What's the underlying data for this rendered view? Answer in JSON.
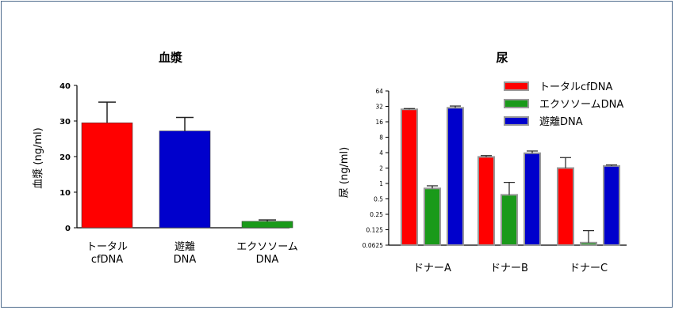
{
  "chart_data": [
    {
      "type": "bar",
      "title": "血漿",
      "ylabel": "血漿 (ng/ml)",
      "ylim": [
        0,
        40
      ],
      "yticks": [
        "0",
        "10",
        "20",
        "30",
        "40"
      ],
      "categories": [
        {
          "line1": "トータル",
          "line2": "cfDNA"
        },
        {
          "line1": "遊離",
          "line2": "DNA"
        },
        {
          "line1": "エクソソーム",
          "line2": "DNA"
        }
      ],
      "values": [
        29.5,
        27.2,
        1.8
      ],
      "errors": [
        5.8,
        3.8,
        0.4
      ],
      "colors": [
        "#ff0000",
        "#0000cc",
        "#1a9a1a"
      ]
    },
    {
      "type": "bar",
      "title": "尿",
      "ylabel": "尿 (ng/ml)",
      "yscale": "log2",
      "ylim": [
        0.0625,
        64
      ],
      "yticks": [
        "64",
        "32",
        "16",
        "8",
        "4",
        "2",
        "1",
        "0.5",
        "0.25",
        "0.125",
        "0.0625"
      ],
      "categories": [
        "ドナーA",
        "ドナーB",
        "ドナーC"
      ],
      "series": [
        {
          "name": "トータルcfDNA",
          "color": "#ff0000",
          "values": [
            28,
            3.3,
            2.0
          ],
          "errors": [
            1.0,
            0.2,
            1.2
          ]
        },
        {
          "name": "エクソソームDNA",
          "color": "#1a9a1a",
          "values": [
            0.8,
            0.6,
            0.07
          ],
          "errors": [
            0.1,
            0.45,
            0.05
          ]
        },
        {
          "name": "遊離DNA",
          "color": "#0000cc",
          "values": [
            30,
            3.9,
            2.2
          ],
          "errors": [
            2.5,
            0.4,
            0.1
          ]
        }
      ]
    }
  ]
}
